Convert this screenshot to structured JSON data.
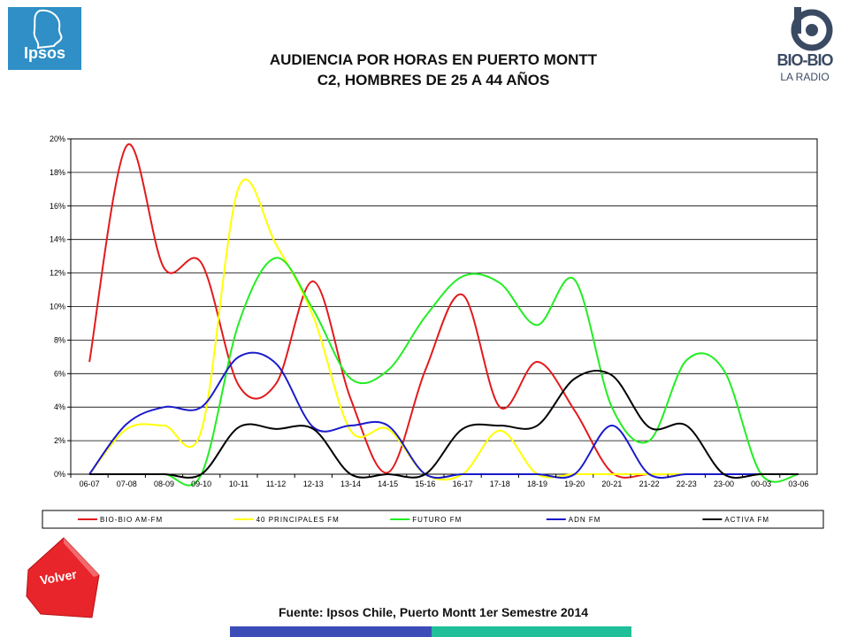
{
  "header": {
    "title_line1": "AUDIENCIA POR HORAS EN PUERTO MONTT",
    "title_line2": "C2, HOMBRES DE 25 A 44 AÑOS",
    "left_logo_text": "Ipsos",
    "right_logo_name": "BIO-BIO",
    "right_logo_sub": "LA RADIO"
  },
  "footer": {
    "source": "Fuente: Ipsos Chile, Puerto Montt 1er Semestre 2014",
    "back_button": "Volver"
  },
  "colors": {
    "ipsos_blue": "#2f8fc6",
    "volver_red": "#e8252a",
    "bar_blue": "#3d4db8",
    "bar_teal": "#1fbf9a"
  },
  "chart_data": {
    "type": "line",
    "title": "",
    "xlabel": "",
    "ylabel": "",
    "ylim": [
      0,
      20
    ],
    "yticks": [
      "0%",
      "2%",
      "4%",
      "6%",
      "8%",
      "10%",
      "12%",
      "14%",
      "16%",
      "18%",
      "20%"
    ],
    "grid": true,
    "legend_position": "bottom",
    "smooth": true,
    "categories": [
      "06-07",
      "07-08",
      "08-09",
      "09-10",
      "10-11",
      "11-12",
      "12-13",
      "13-14",
      "14-15",
      "15-16",
      "16-17",
      "17-18",
      "18-19",
      "19-20",
      "20-21",
      "21-22",
      "22-23",
      "23-00",
      "00-03",
      "03-06"
    ],
    "series": [
      {
        "name": "BIO-BIO AM-FM",
        "color": "#e31a1c",
        "values": [
          6.7,
          19.6,
          12.3,
          12.6,
          5.3,
          5.4,
          11.5,
          4.5,
          0.1,
          6.2,
          10.7,
          4.0,
          6.7,
          3.8,
          0.1,
          0,
          0,
          0,
          0,
          0
        ]
      },
      {
        "name": "40 PRINCIPALES FM",
        "color": "#ffff00",
        "values": [
          0,
          2.7,
          2.9,
          2.6,
          17.1,
          13.7,
          9.4,
          2.6,
          2.7,
          0,
          0,
          2.6,
          0,
          0,
          0,
          0,
          0,
          0,
          0,
          0
        ]
      },
      {
        "name": "FUTURO FM",
        "color": "#22ee22",
        "values": [
          0,
          0,
          0,
          0,
          9.0,
          12.9,
          9.8,
          5.7,
          6.2,
          9.4,
          11.8,
          11.4,
          8.9,
          11.6,
          4.0,
          2.0,
          6.8,
          6.2,
          0,
          0
        ]
      },
      {
        "name": "ADN FM",
        "color": "#1a1acc",
        "values": [
          0,
          3.0,
          4.0,
          4.0,
          7.0,
          6.6,
          2.8,
          2.9,
          2.9,
          0,
          0,
          0,
          0,
          0,
          2.9,
          0,
          0,
          0,
          0,
          0
        ]
      },
      {
        "name": "ACTIVA FM",
        "color": "#000000",
        "values": [
          0,
          0,
          0,
          0,
          2.8,
          2.7,
          2.7,
          0,
          0,
          0,
          2.7,
          2.9,
          2.9,
          5.7,
          5.9,
          2.8,
          2.9,
          0,
          0,
          0
        ]
      }
    ]
  }
}
